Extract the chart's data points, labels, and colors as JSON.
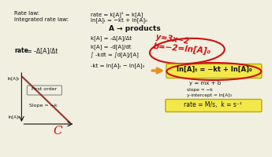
{
  "bg_color": "#f0efe0",
  "highlight_box_color": "#f2e84a",
  "red_color": "#cc1111",
  "orange_color": "#e89020",
  "text_color": "#111111",
  "gray_color": "#888888",
  "graph_line_color": "#993333",
  "title_line1": "Rate law:",
  "title_line1_val": "rate = k[A]¹ = k[A]",
  "title_line2": "Integrated rate law:",
  "title_line2_val": "ln[A]ₜ = −kt + ln[A]₀",
  "section_title": "A → products",
  "rate_bold": "rate",
  "rate_rest": " = -Δ[A]/Δt",
  "eq1": "k[A] = -Δ[A]/Δt",
  "eq2": "k[A] = -d[A]/dt",
  "eq3": "∫ -kdt = ∫d[A]/[A]",
  "eq4": "-kt = ln[A]ₜ − ln[A]₀",
  "highlighted_eq": "ln[A]ₜ = −kt + ln[A]₀",
  "ymx_b": "y = mx + b",
  "slope_text": "slope = −k",
  "intercept_text": "y-intercept = ln[A]₀",
  "units_text": "rate = M/s,  k = s⁻¹",
  "handwritten1": "y=3x−2",
  "handwritten2": "b=−2=ln[A]₀",
  "first_order_label": "First order",
  "slope_label": "Slope = −k",
  "graph_label_c": "C",
  "ylabelt": "ln[A]₀",
  "ylabelb": "ln[A]ₜ"
}
